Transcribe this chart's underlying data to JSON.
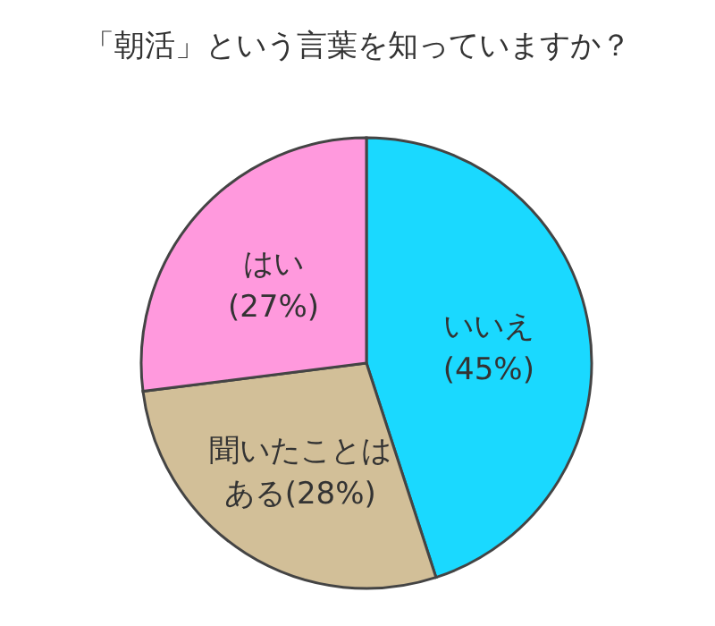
{
  "chart_data": {
    "type": "pie",
    "title": "「朝活」という言葉を知っていますか？",
    "categories": [
      "いいえ",
      "聞いたことはある",
      "はい"
    ],
    "values": [
      45,
      28,
      27
    ],
    "colors": [
      "#1ad9ff",
      "#d2bf98",
      "#ff99dd"
    ],
    "value_labels": [
      "(45%)",
      "(28%)",
      "(27%)"
    ],
    "legend": false
  }
}
